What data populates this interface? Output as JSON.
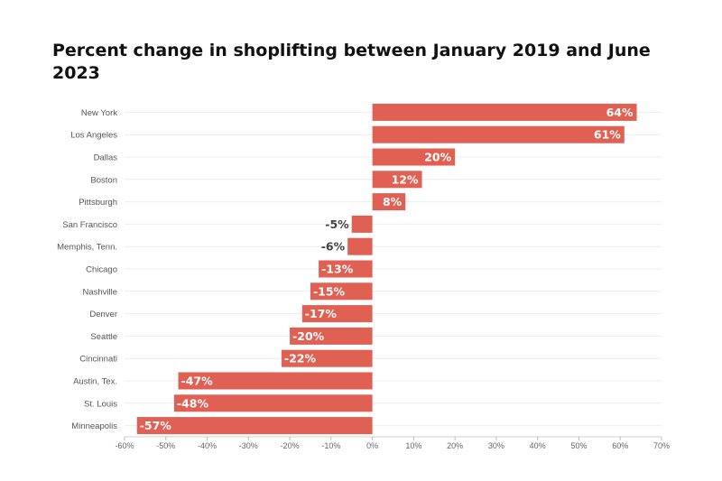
{
  "chart_data": {
    "type": "bar",
    "orientation": "horizontal",
    "title": "Percent change in shoplifting between January 2019 and June 2023",
    "categories": [
      "New York",
      "Los Angeles",
      "Dallas",
      "Boston",
      "Pittsburgh",
      "San Francisco",
      "Memphis, Tenn.",
      "Chicago",
      "Nashville",
      "Denver",
      "Seattle",
      "Cincinnati",
      "Austin, Tex.",
      "St. Louis",
      "Minneapolis"
    ],
    "values": [
      64,
      61,
      20,
      12,
      8,
      -5,
      -6,
      -13,
      -15,
      -17,
      -20,
      -22,
      -47,
      -48,
      -57
    ],
    "value_labels": [
      "64%",
      "61%",
      "20%",
      "12%",
      "8%",
      "-5%",
      "-6%",
      "-13%",
      "-15%",
      "-17%",
      "-20%",
      "-22%",
      "-47%",
      "-48%",
      "-57%"
    ],
    "xlim": [
      -60,
      70
    ],
    "xticks": [
      -60,
      -50,
      -40,
      -30,
      -20,
      -10,
      0,
      10,
      20,
      30,
      40,
      50,
      60,
      70
    ],
    "xtick_labels": [
      "-60%",
      "-50%",
      "-40%",
      "-30%",
      "-20%",
      "-10%",
      "0%",
      "10%",
      "20%",
      "30%",
      "40%",
      "50%",
      "60%",
      "70%"
    ],
    "bar_color": "#e06153",
    "grid": "horizontal"
  }
}
